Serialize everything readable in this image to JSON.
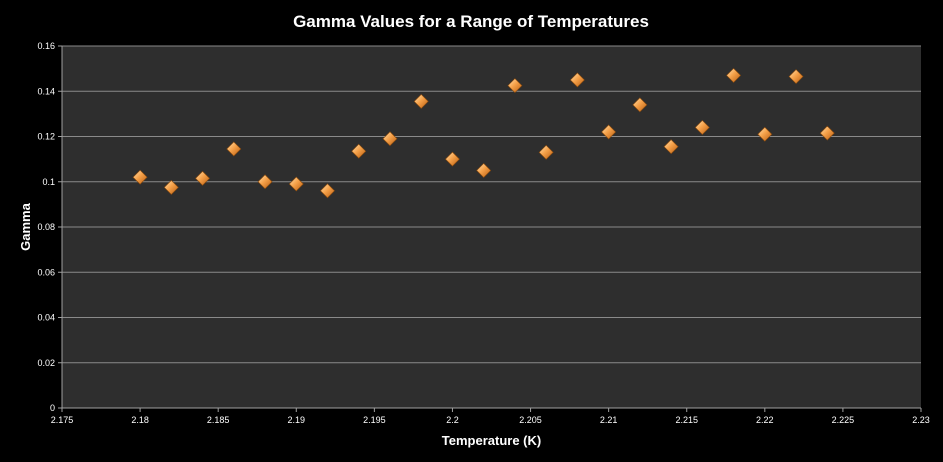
{
  "chart_data": {
    "type": "scatter",
    "title": "Gamma Values for a Range of Temperatures",
    "xlabel": "Temperature (K)",
    "ylabel": "Gamma",
    "xlim": [
      2.175,
      2.23
    ],
    "ylim": [
      0,
      0.16
    ],
    "x_ticks": [
      "2.175",
      "2.18",
      "2.185",
      "2.19",
      "2.195",
      "2.2",
      "2.205",
      "2.21",
      "2.215",
      "2.22",
      "2.225",
      "2.23"
    ],
    "y_ticks": [
      "0",
      "0.02",
      "0.04",
      "0.06",
      "0.08",
      "0.1",
      "0.12",
      "0.14",
      "0.16"
    ],
    "grid": "horizontal",
    "legend": "none",
    "marker": "diamond",
    "series": [
      {
        "x": [
          2.18,
          2.182,
          2.184,
          2.186,
          2.188,
          2.19,
          2.192,
          2.194,
          2.196,
          2.198,
          2.2,
          2.202,
          2.204,
          2.206,
          2.208,
          2.21,
          2.212,
          2.214,
          2.216,
          2.218,
          2.22,
          2.222,
          2.224
        ],
        "y": [
          0.102,
          0.0975,
          0.1015,
          0.1145,
          0.1,
          0.099,
          0.096,
          0.1135,
          0.119,
          0.1355,
          0.11,
          0.105,
          0.1425,
          0.113,
          0.145,
          0.122,
          0.134,
          0.1155,
          0.124,
          0.147,
          0.121,
          0.1465,
          0.1215
        ]
      }
    ]
  },
  "colors": {
    "background": "#000000",
    "plot_area": "#2e2e2e",
    "gridline": "#8a8a8a",
    "axis": "#a0a0a0",
    "marker_light": "#fde3b8",
    "marker_mid": "#f6a24a",
    "marker_dark": "#b85c10",
    "text": "#ffffff"
  }
}
